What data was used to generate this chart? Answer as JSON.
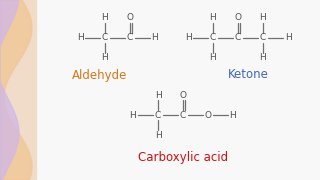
{
  "background_color": "#f8f8f8",
  "atom_color": "#505050",
  "bond_color": "#707070",
  "aldehyde_label": "Aldehyde",
  "aldehyde_color": "#d4781a",
  "ketone_label": "Ketone",
  "ketone_color": "#4466bb",
  "carboxylic_label": "Carboxylic acid",
  "carboxylic_color": "#cc1111",
  "font_size_atom": 6.5,
  "font_size_label": 8.5,
  "sidebar_base_color": "#f0dcc8",
  "sidebar_wave1_color": "#f0c898",
  "sidebar_wave2_color": "#d0b8e8"
}
